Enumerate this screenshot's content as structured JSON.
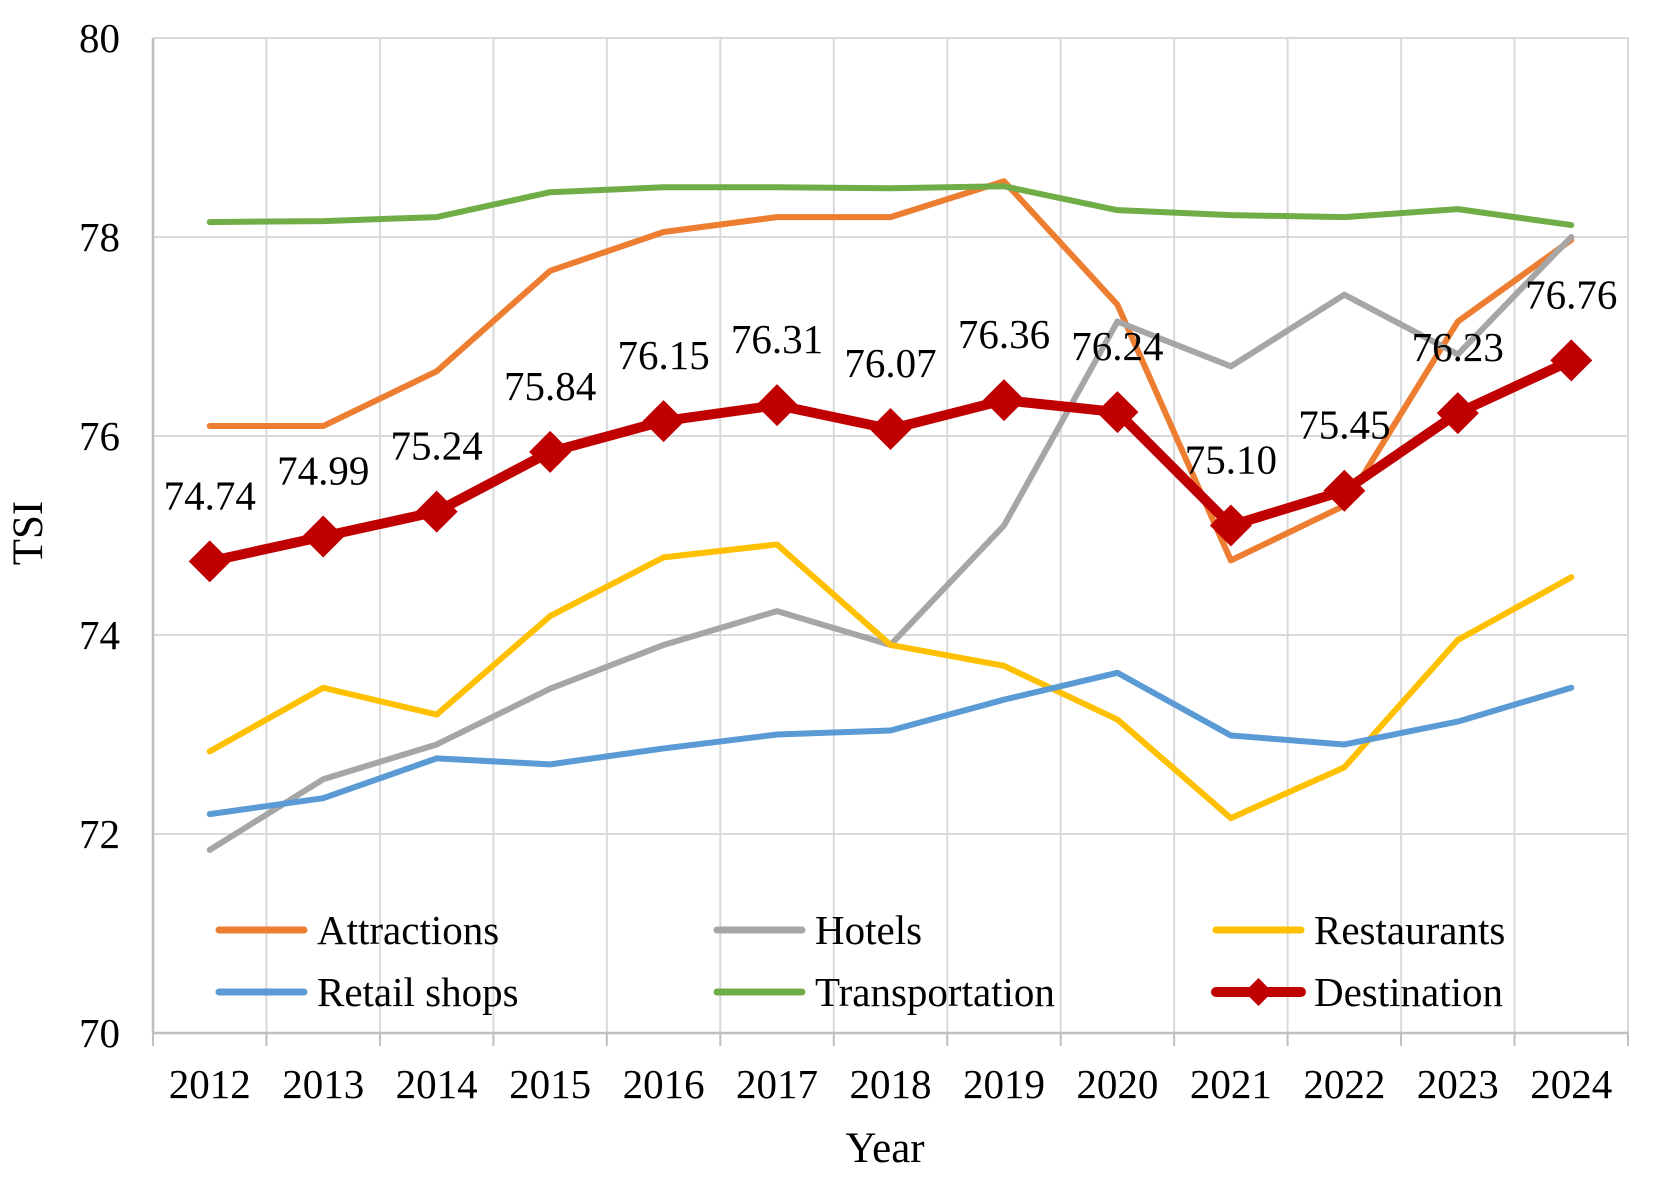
{
  "chart_data": {
    "type": "line",
    "title": "",
    "xlabel": "Year",
    "ylabel": "TSI",
    "ylim": [
      70,
      80
    ],
    "ytick_step": 2,
    "grid": true,
    "legend_position": "bottom-inside",
    "categories": [
      "2012",
      "2013",
      "2014",
      "2015",
      "2016",
      "2017",
      "2018",
      "2019",
      "2020",
      "2021",
      "2022",
      "2023",
      "2024"
    ],
    "series": [
      {
        "name": "Attractions",
        "color": "#ED7D31",
        "values": [
          76.1,
          76.1,
          76.65,
          77.66,
          78.05,
          78.2,
          78.2,
          78.56,
          77.32,
          74.75,
          75.3,
          77.15,
          77.97
        ]
      },
      {
        "name": "Hotels",
        "color": "#A6A6A6",
        "values": [
          71.84,
          72.55,
          72.9,
          73.46,
          73.9,
          74.24,
          73.9,
          75.1,
          77.15,
          76.7,
          77.42,
          76.82,
          78.0
        ]
      },
      {
        "name": "Restaurants",
        "color": "#FFC000",
        "values": [
          72.83,
          73.47,
          73.2,
          74.19,
          74.78,
          74.91,
          73.9,
          73.69,
          73.15,
          72.16,
          72.67,
          73.95,
          74.58
        ]
      },
      {
        "name": "Retail shops",
        "color": "#5B9BD5",
        "values": [
          72.2,
          72.36,
          72.76,
          72.7,
          72.86,
          73.0,
          73.04,
          73.35,
          73.62,
          72.99,
          72.9,
          73.13,
          73.47
        ]
      },
      {
        "name": "Transportation",
        "color": "#70AD47",
        "values": [
          78.15,
          78.16,
          78.2,
          78.45,
          78.5,
          78.5,
          78.49,
          78.51,
          78.27,
          78.22,
          78.2,
          78.28,
          78.12
        ]
      },
      {
        "name": "Destination",
        "color": "#C00000",
        "marker": "diamond",
        "values": [
          74.74,
          74.99,
          75.24,
          75.84,
          76.15,
          76.31,
          76.07,
          76.36,
          76.24,
          75.1,
          75.45,
          76.23,
          76.76
        ],
        "data_labels": [
          "74.74",
          "74.99",
          "75.24",
          "75.84",
          "76.15",
          "76.31",
          "76.07",
          "76.36",
          "76.24",
          "75.10",
          "75.45",
          "76.23",
          "76.76"
        ]
      }
    ],
    "yticks": [
      "70",
      "72",
      "74",
      "76",
      "78",
      "80"
    ]
  },
  "styles": {
    "gridline_color": "#D9D9D9",
    "axis_color": "#BFBFBF",
    "text_color": "#000000",
    "background": "#FFFFFF"
  }
}
